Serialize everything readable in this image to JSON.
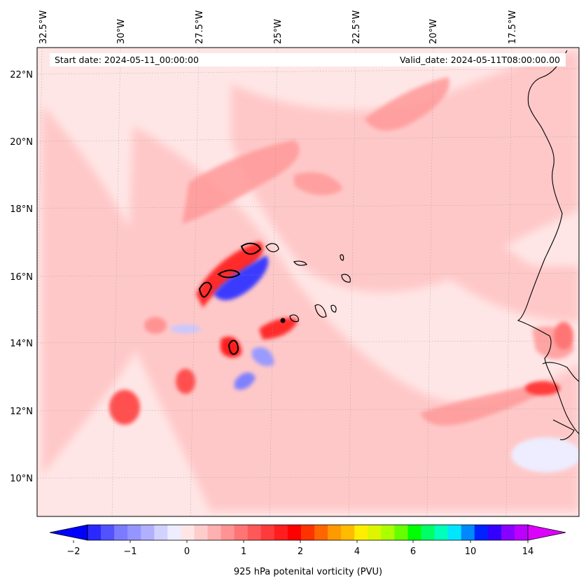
{
  "header": {
    "start_date": "Start date: 2024-05-11_00:00:00",
    "valid_date": "Valid_date: 2024-05-11T08:00:00.00"
  },
  "lon_labels": [
    "32.5°W",
    "30°W",
    "27.5°W",
    "25°W",
    "22.5°W",
    "20°W",
    "17.5°W"
  ],
  "lat_labels": [
    "22°N",
    "20°N",
    "18°N",
    "16°N",
    "14°N",
    "12°N",
    "10°N"
  ],
  "colorbar": {
    "title": "925 hPa potenital vorticity (PVU)",
    "tick_labels": [
      "−2",
      "−1",
      "0",
      "1",
      "2",
      "4",
      "6",
      "10",
      "14"
    ],
    "colors": [
      "#0000ff",
      "#2929ff",
      "#5252ff",
      "#7b7bff",
      "#9595ff",
      "#b0b0ff",
      "#d2d2ff",
      "#ededff",
      "#ffe6e6",
      "#ffcccc",
      "#ffb0b0",
      "#ff9393",
      "#ff7575",
      "#ff5858",
      "#ff3a3a",
      "#ff1d1d",
      "#ff0000",
      "#ff3300",
      "#ff6600",
      "#ff9900",
      "#ffbb00",
      "#ffee00",
      "#ddf500",
      "#aaff00",
      "#66ff00",
      "#00ff00",
      "#00ff66",
      "#00ffbb",
      "#00e6ff",
      "#0088ff",
      "#0022ff",
      "#3300ff",
      "#8800ff",
      "#bb00ff",
      "#dd00ff"
    ]
  }
}
